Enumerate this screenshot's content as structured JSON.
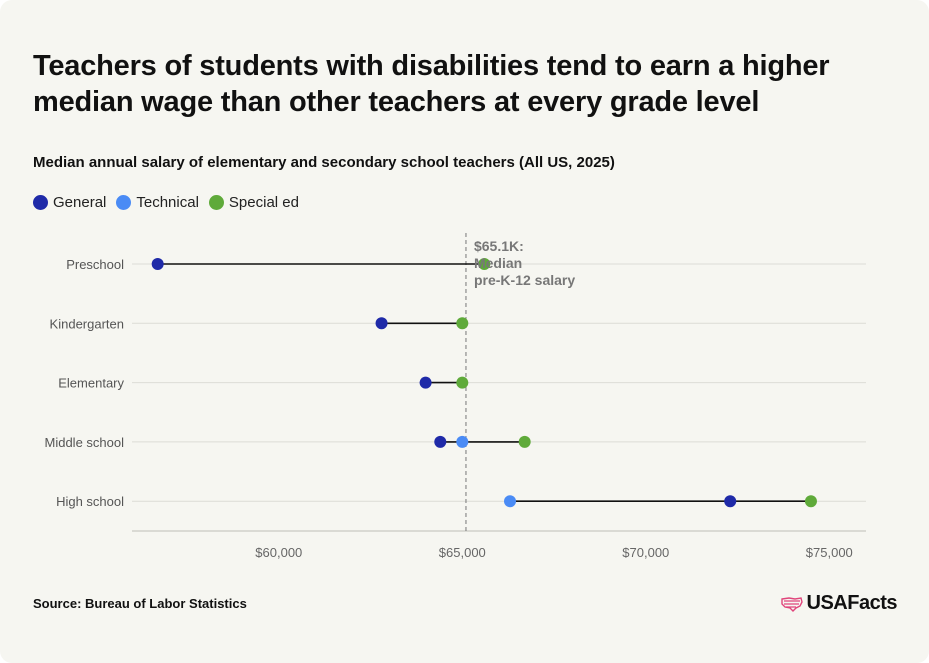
{
  "header": {
    "title": "Teachers of students with disabilities tend to earn a higher median wage than other teachers at every grade level",
    "subtitle": "Median annual salary of elementary and secondary school teachers (All US, 2025)"
  },
  "legend": [
    {
      "label": "General",
      "color": "#1f2aa8"
    },
    {
      "label": "Technical",
      "color": "#4a8bf5"
    },
    {
      "label": "Special ed",
      "color": "#5faa3a"
    }
  ],
  "chart_data": {
    "type": "dot-range",
    "categories": [
      "Preschool",
      "Kindergarten",
      "Elementary",
      "Middle school",
      "High school"
    ],
    "series": [
      {
        "name": "General",
        "values": [
          56700,
          62800,
          64000,
          64400,
          72300
        ]
      },
      {
        "name": "Technical",
        "values": [
          null,
          null,
          null,
          65000,
          66300
        ]
      },
      {
        "name": "Special ed",
        "values": [
          65600,
          65000,
          65000,
          66700,
          74500
        ]
      }
    ],
    "xlim": [
      56000,
      76000
    ],
    "xticks": [
      60000,
      65000,
      70000,
      75000
    ],
    "xtick_labels": [
      "$60,000",
      "$65,000",
      "$70,000",
      "$75,000"
    ],
    "reference_line": {
      "value": 65100,
      "label_lines": [
        "$65.1K:",
        "Median",
        "pre-K-12 salary"
      ]
    },
    "grid": true
  },
  "footer": {
    "source": "Source: Bureau of Labor Statistics",
    "logo": "USAFacts",
    "logo_icon": "us-map-flag-icon"
  }
}
